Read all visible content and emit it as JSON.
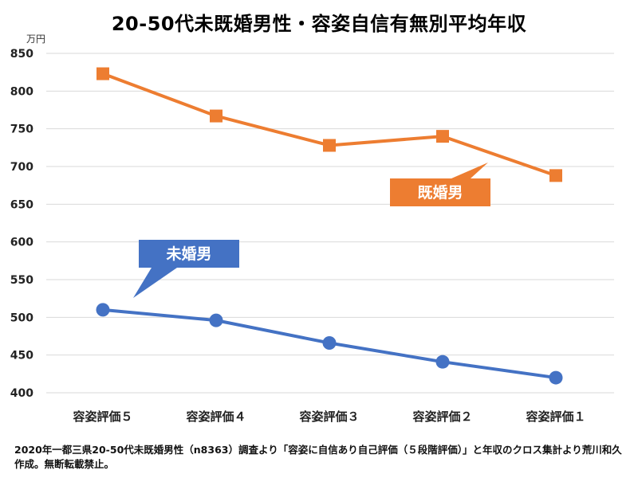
{
  "chart_data": {
    "type": "line",
    "title": "20-50代未既婚男性・容姿自信有無別平均年収",
    "ylabel": "万円",
    "xlabel": "",
    "categories": [
      "容姿評価５",
      "容姿評価４",
      "容姿評価３",
      "容姿評価２",
      "容姿評価１"
    ],
    "ylim": [
      400,
      850
    ],
    "yticks": [
      400,
      450,
      500,
      550,
      600,
      650,
      700,
      750,
      800,
      850
    ],
    "grid": true,
    "series": [
      {
        "name": "既婚男",
        "color": "#ed7d31",
        "marker": "square",
        "values": [
          823,
          767,
          728,
          740,
          688
        ]
      },
      {
        "name": "未婚男",
        "color": "#4472c4",
        "marker": "circle",
        "values": [
          510,
          496,
          466,
          441,
          420
        ]
      }
    ]
  },
  "footnote": "2020年一都三県20-50代未既婚男性（n8363）調査より「容姿に自信あり自己評価（５段階評価）」と年収のクロス集計より荒川和久作成。無断転載禁止。"
}
